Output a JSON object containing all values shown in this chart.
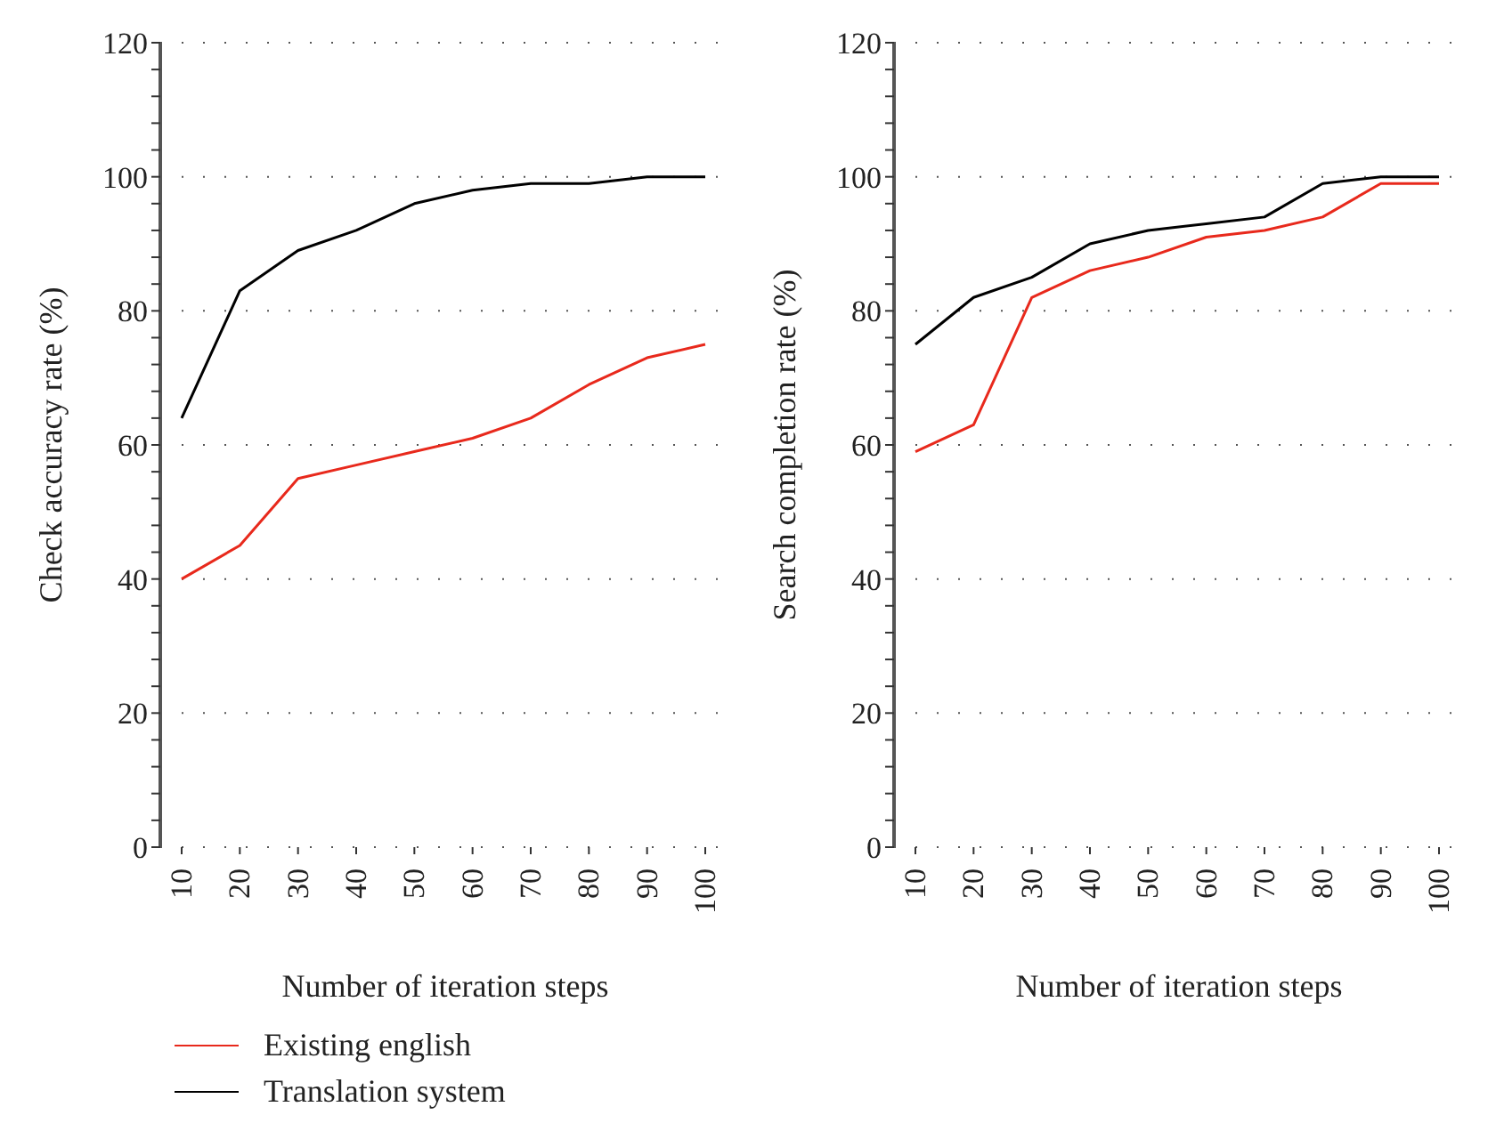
{
  "chart_data": [
    {
      "type": "line",
      "xlabel": "Number of iteration steps",
      "ylabel": "Check accuracy rate (%)",
      "categories": [
        "10",
        "20",
        "30",
        "40",
        "50",
        "60",
        "70",
        "80",
        "90",
        "100"
      ],
      "series": [
        {
          "name": "Existing english",
          "color": "#e8291c",
          "values": [
            40,
            45,
            55,
            57,
            59,
            61,
            64,
            69,
            73,
            75
          ]
        },
        {
          "name": "Translation system",
          "color": "#000000",
          "values": [
            64,
            83,
            89,
            92,
            96,
            98,
            99,
            99,
            100,
            100
          ]
        }
      ],
      "ylim": [
        0,
        120
      ],
      "yticks": [
        0,
        {
          "value": 4,
          "label": null
        },
        {
          "value": 8,
          "label": null
        },
        {
          "value": 12,
          "label": null
        },
        {
          "value": 16,
          "label": null
        },
        20,
        {
          "value": 24,
          "label": null
        },
        {
          "value": 28,
          "label": null
        },
        {
          "value": 32,
          "label": null
        },
        {
          "value": 36,
          "label": null
        },
        40,
        {
          "value": 44,
          "label": null
        },
        {
          "value": 48,
          "label": null
        },
        {
          "value": 52,
          "label": null
        },
        {
          "value": 56,
          "label": null
        },
        60,
        {
          "value": 64,
          "label": null
        },
        {
          "value": 68,
          "label": null
        },
        {
          "value": 72,
          "label": null
        },
        {
          "value": 76,
          "label": null
        },
        80,
        {
          "value": 84,
          "label": null
        },
        {
          "value": 88,
          "label": null
        },
        {
          "value": 92,
          "label": null
        },
        {
          "value": 96,
          "label": null
        },
        100,
        {
          "value": 104,
          "label": null
        },
        {
          "value": 108,
          "label": null
        },
        {
          "value": 112,
          "label": null
        },
        {
          "value": 116,
          "label": null
        },
        120
      ],
      "grid": "y",
      "legend": "bottom",
      "marker": "none",
      "line_style": "solid"
    },
    {
      "type": "line",
      "xlabel": "Number of iteration steps",
      "ylabel": "Search completion rate (%)",
      "categories": [
        "10",
        "20",
        "30",
        "40",
        "50",
        "60",
        "70",
        "80",
        "90",
        "100"
      ],
      "series": [
        {
          "color": "#e8291c",
          "values": [
            59,
            63,
            82,
            86,
            88,
            91,
            92,
            94,
            99,
            99
          ]
        },
        {
          "color": "#000000",
          "values": [
            75,
            82,
            85,
            90,
            92,
            93,
            94,
            99,
            100,
            100
          ]
        }
      ],
      "ylim": [
        0,
        120
      ],
      "yticks": [
        0,
        {
          "value": 4,
          "label": null
        },
        {
          "value": 8,
          "label": null
        },
        {
          "value": 12,
          "label": null
        },
        {
          "value": 16,
          "label": null
        },
        20,
        {
          "value": 24,
          "label": null
        },
        {
          "value": 28,
          "label": null
        },
        {
          "value": 32,
          "label": null
        },
        {
          "value": 36,
          "label": null
        },
        40,
        {
          "value": 44,
          "label": null
        },
        {
          "value": 48,
          "label": null
        },
        {
          "value": 52,
          "label": null
        },
        {
          "value": 56,
          "label": null
        },
        60,
        {
          "value": 64,
          "label": null
        },
        {
          "value": 68,
          "label": null
        },
        {
          "value": 72,
          "label": null
        },
        {
          "value": 76,
          "label": null
        },
        80,
        {
          "value": 84,
          "label": null
        },
        {
          "value": 88,
          "label": null
        },
        {
          "value": 92,
          "label": null
        },
        {
          "value": 96,
          "label": null
        },
        100,
        {
          "value": 104,
          "label": null
        },
        {
          "value": 108,
          "label": null
        },
        {
          "value": 112,
          "label": null
        },
        {
          "value": 116,
          "label": null
        },
        120
      ],
      "grid": "y",
      "marker": "none",
      "line_style": "solid"
    }
  ]
}
